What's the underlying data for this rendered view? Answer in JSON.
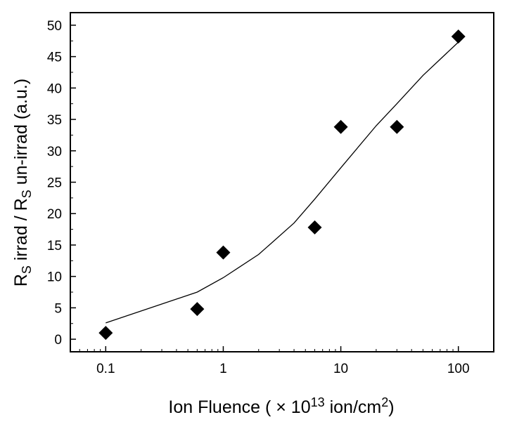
{
  "chart_data": {
    "type": "scatter",
    "xscale": "log",
    "xlim": [
      0.05,
      200
    ],
    "ylim": [
      -2,
      52
    ],
    "xticks": [
      {
        "value": 0.1,
        "label": "0.1"
      },
      {
        "value": 1,
        "label": "1"
      },
      {
        "value": 10,
        "label": "10"
      },
      {
        "value": 100,
        "label": "100"
      }
    ],
    "yticks": [
      {
        "value": 0,
        "label": "0"
      },
      {
        "value": 5,
        "label": "5"
      },
      {
        "value": 10,
        "label": "10"
      },
      {
        "value": 15,
        "label": "15"
      },
      {
        "value": 20,
        "label": "20"
      },
      {
        "value": 25,
        "label": "25"
      },
      {
        "value": 30,
        "label": "30"
      },
      {
        "value": 35,
        "label": "35"
      },
      {
        "value": 40,
        "label": "40"
      },
      {
        "value": 45,
        "label": "45"
      },
      {
        "value": 50,
        "label": "50"
      }
    ],
    "xlabel": {
      "prefix": "Ion Fluence ( × 10",
      "exponent": "13",
      "middle": " ion/cm",
      "unit_exponent": "2",
      "suffix": ")"
    },
    "ylabel": {
      "part1": "R",
      "sub1": "S",
      "part2": " irrad / R",
      "sub2": "S",
      "part3": " un-irrad (a.u.)"
    },
    "points": [
      {
        "x": 0.1,
        "y": 1.0
      },
      {
        "x": 0.6,
        "y": 4.8
      },
      {
        "x": 1.0,
        "y": 13.8
      },
      {
        "x": 6.0,
        "y": 17.8
      },
      {
        "x": 10.0,
        "y": 33.8
      },
      {
        "x": 30.0,
        "y": 33.8
      },
      {
        "x": 100.0,
        "y": 48.2
      }
    ],
    "fit_line": [
      {
        "x": 0.1,
        "y": 2.6
      },
      {
        "x": 0.6,
        "y": 7.5
      },
      {
        "x": 1.0,
        "y": 9.8
      },
      {
        "x": 2.0,
        "y": 13.5
      },
      {
        "x": 4.0,
        "y": 18.5
      },
      {
        "x": 6.0,
        "y": 22.3
      },
      {
        "x": 10.0,
        "y": 27.3
      },
      {
        "x": 20.0,
        "y": 34.0
      },
      {
        "x": 30.0,
        "y": 37.5
      },
      {
        "x": 50.0,
        "y": 42.0
      },
      {
        "x": 100.0,
        "y": 47.3
      }
    ],
    "marker": "diamond",
    "marker_color": "#000000",
    "line_color": "#000000",
    "grid": false,
    "legend": "none"
  }
}
